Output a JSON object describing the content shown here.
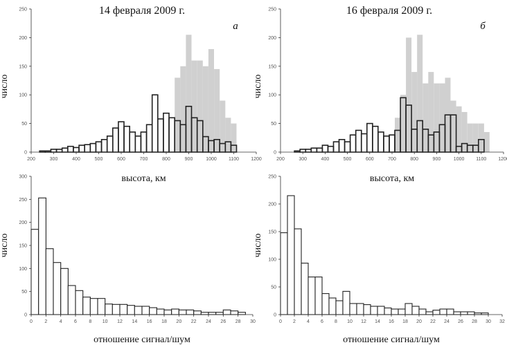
{
  "chart_data": [
    {
      "type": "bar",
      "title": "14 февраля 2009 г.",
      "panel_label": "a",
      "xlabel": "высота, км",
      "ylabel": "число",
      "xlim": [
        200,
        1200
      ],
      "ylim": [
        0,
        250
      ],
      "xticks": [
        200,
        300,
        400,
        500,
        600,
        700,
        800,
        900,
        1000,
        1100,
        1200
      ],
      "yticks": [
        0,
        50,
        100,
        150,
        200,
        250
      ],
      "bin_width": 25,
      "series": [
        {
          "role": "background",
          "color": "#d0d0d0",
          "x": [
            850,
            875,
            900,
            925,
            950,
            975,
            1000,
            1025,
            1050,
            1075,
            1100
          ],
          "values": [
            130,
            150,
            205,
            160,
            160,
            150,
            180,
            145,
            90,
            60,
            50
          ]
        },
        {
          "role": "outline",
          "color": "#222222",
          "x": [
            250,
            275,
            300,
            325,
            350,
            375,
            400,
            425,
            450,
            475,
            500,
            525,
            550,
            575,
            600,
            625,
            650,
            675,
            700,
            725,
            750,
            775,
            800,
            825,
            850,
            875,
            900,
            925,
            950,
            975,
            1000,
            1025,
            1050,
            1075,
            1100,
            1125
          ],
          "values": [
            2,
            2,
            5,
            5,
            7,
            10,
            8,
            12,
            13,
            15,
            18,
            22,
            28,
            42,
            53,
            45,
            35,
            28,
            35,
            48,
            100,
            58,
            68,
            60,
            55,
            48,
            80,
            60,
            55,
            27,
            20,
            22,
            15,
            18,
            12,
            0
          ]
        }
      ]
    },
    {
      "type": "bar",
      "title": "16 февраля 2009 г.",
      "panel_label": "б",
      "xlabel": "высота, км",
      "ylabel": "число",
      "xlim": [
        200,
        1200
      ],
      "ylim": [
        0,
        250
      ],
      "xticks": [
        200,
        300,
        400,
        500,
        600,
        700,
        800,
        900,
        1000,
        1100,
        1200
      ],
      "yticks": [
        0,
        50,
        100,
        150,
        200,
        250
      ],
      "bin_width": 25,
      "series": [
        {
          "role": "background",
          "color": "#d0d0d0",
          "x": [
            725,
            750,
            775,
            800,
            825,
            850,
            875,
            900,
            925,
            950,
            975,
            1000,
            1025,
            1050,
            1075,
            1100,
            1125
          ],
          "values": [
            60,
            100,
            200,
            140,
            205,
            120,
            140,
            120,
            120,
            130,
            90,
            80,
            70,
            50,
            50,
            50,
            35
          ]
        },
        {
          "role": "outline",
          "color": "#222222",
          "x": [
            275,
            300,
            325,
            350,
            375,
            400,
            425,
            450,
            475,
            500,
            525,
            550,
            575,
            600,
            625,
            650,
            675,
            700,
            725,
            750,
            775,
            800,
            825,
            850,
            875,
            900,
            925,
            950,
            975,
            1000,
            1025,
            1050,
            1075,
            1100,
            1125
          ],
          "values": [
            2,
            5,
            5,
            7,
            7,
            12,
            10,
            18,
            22,
            18,
            30,
            38,
            32,
            50,
            45,
            35,
            28,
            30,
            38,
            95,
            82,
            40,
            55,
            40,
            30,
            35,
            48,
            65,
            65,
            10,
            15,
            12,
            12,
            22,
            0
          ]
        }
      ]
    },
    {
      "type": "bar",
      "title": "",
      "xlabel": "отношение сигнал/шум",
      "ylabel": "число",
      "xlim": [
        0,
        30
      ],
      "ylim": [
        0,
        300
      ],
      "xticks": [
        0,
        2,
        4,
        6,
        8,
        10,
        12,
        14,
        16,
        18,
        20,
        22,
        24,
        26,
        28,
        30
      ],
      "yticks": [
        0,
        50,
        100,
        150,
        200,
        250,
        300
      ],
      "bin_width": 1,
      "series": [
        {
          "role": "plain",
          "color": "#222222",
          "x": [
            1,
            2,
            3,
            4,
            5,
            6,
            7,
            8,
            9,
            10,
            11,
            12,
            13,
            14,
            15,
            16,
            17,
            18,
            19,
            20,
            21,
            22,
            23,
            24,
            25,
            26,
            27,
            28,
            29
          ],
          "values": [
            185,
            253,
            143,
            113,
            100,
            63,
            52,
            38,
            35,
            35,
            23,
            22,
            22,
            20,
            18,
            18,
            15,
            12,
            10,
            12,
            10,
            10,
            8,
            5,
            5,
            5,
            10,
            8,
            5
          ]
        }
      ]
    },
    {
      "type": "bar",
      "title": "",
      "xlabel": "отношение сигнал/шум",
      "ylabel": "число",
      "xlim": [
        0,
        32
      ],
      "ylim": [
        0,
        250
      ],
      "xticks": [
        0,
        2,
        4,
        6,
        8,
        10,
        12,
        14,
        16,
        18,
        20,
        22,
        24,
        26,
        28,
        30,
        32
      ],
      "yticks": [
        0,
        50,
        100,
        150,
        200,
        250
      ],
      "bin_width": 1,
      "series": [
        {
          "role": "plain",
          "color": "#222222",
          "x": [
            1,
            2,
            3,
            4,
            5,
            6,
            7,
            8,
            9,
            10,
            11,
            12,
            13,
            14,
            15,
            16,
            17,
            18,
            19,
            20,
            21,
            22,
            23,
            24,
            25,
            26,
            27,
            28,
            29,
            30
          ],
          "values": [
            148,
            215,
            155,
            93,
            68,
            68,
            38,
            30,
            25,
            42,
            20,
            20,
            18,
            15,
            15,
            12,
            10,
            10,
            20,
            15,
            10,
            5,
            8,
            10,
            10,
            5,
            5,
            5,
            3,
            3
          ]
        }
      ]
    }
  ]
}
